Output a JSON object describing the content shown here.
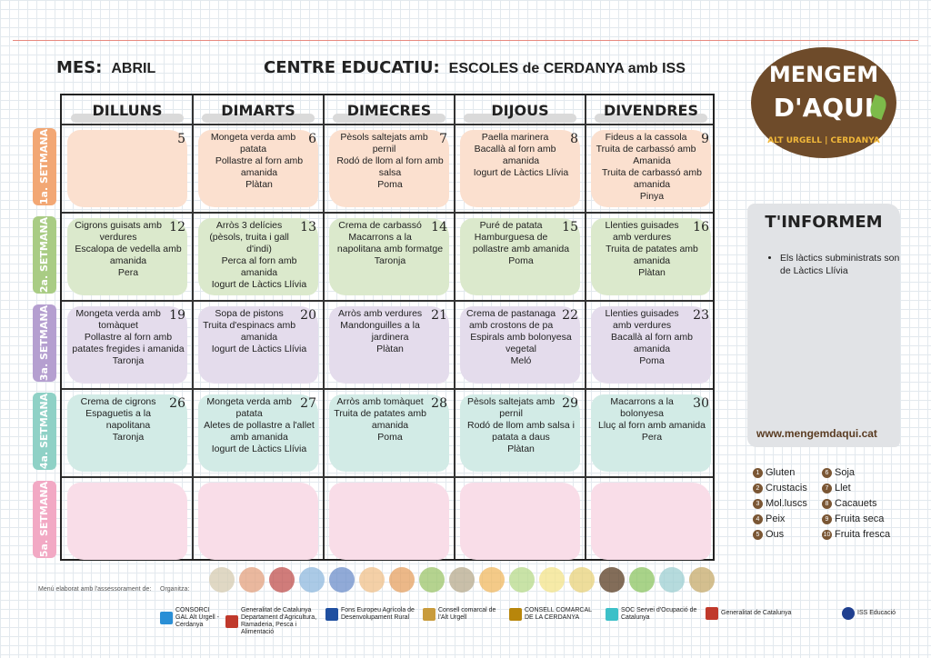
{
  "header": {
    "mes_label": "MES:",
    "mes": "ABRIL",
    "centre_label": "CENTRE EDUCATIU:",
    "centre": "ESCOLES de CERDANYA amb ISS"
  },
  "days": [
    "DILLUNS",
    "DIMARTS",
    "DIMECRES",
    "DIJOUS",
    "DIVENDRES"
  ],
  "weeks": [
    {
      "label": "1a. SETMANA",
      "color": "#f2a774",
      "bg": "#fbe0cf",
      "cells": [
        {
          "day": "5",
          "dishes": []
        },
        {
          "day": "6",
          "dishes": [
            "Mongeta verda amb patata",
            "Pollastre al forn amb amanida",
            "Plàtan"
          ]
        },
        {
          "day": "7",
          "dishes": [
            "Pèsols saltejats amb pernil",
            "Rodó de llom al forn amb salsa",
            "Poma"
          ]
        },
        {
          "day": "8",
          "dishes": [
            "Paella marinera",
            "Bacallà al forn amb amanida",
            "Iogurt de Làctics Llívia"
          ]
        },
        {
          "day": "9",
          "dishes": [
            "Fideus a la cassola",
            "Truita de carbassó amb Amanida",
            "Truita de carbassó amb amanida",
            "Pinya"
          ]
        }
      ]
    },
    {
      "label": "2a. SETMANA",
      "color": "#a9cc84",
      "bg": "#dbe9cc",
      "cells": [
        {
          "day": "12",
          "dishes": [
            "Cigrons guisats amb verdures",
            "Escalopa de vedella amb amanida",
            "Pera"
          ]
        },
        {
          "day": "13",
          "dishes": [
            "Arròs 3 delícies (pèsols, truita i gall d'indi)",
            "Perca al forn amb amanida",
            "Iogurt de Làctics Llívia"
          ]
        },
        {
          "day": "14",
          "dishes": [
            "Crema de carbassó",
            "Macarrons a la napolitana amb formatge",
            "Taronja"
          ]
        },
        {
          "day": "15",
          "dishes": [
            "Puré de patata",
            "Hamburguesa de pollastre amb amanida",
            "Poma"
          ]
        },
        {
          "day": "16",
          "dishes": [
            "Llenties guisades amb verdures",
            "Truita de patates amb amanida",
            "Plàtan"
          ]
        }
      ]
    },
    {
      "label": "3a. SETMANA",
      "color": "#b59fd0",
      "bg": "#e4dcec",
      "cells": [
        {
          "day": "19",
          "dishes": [
            "Mongeta verda amb tomàquet",
            "Pollastre al forn amb patates fregides i amanida",
            "Taronja"
          ]
        },
        {
          "day": "20",
          "dishes": [
            "Sopa de pistons",
            "Truita d'espinacs amb amanida",
            "Iogurt de Làctics Llívia"
          ]
        },
        {
          "day": "21",
          "dishes": [
            "Arròs amb verdures",
            "Mandonguilles a la jardinera",
            "Plàtan"
          ]
        },
        {
          "day": "22",
          "dishes": [
            "Crema de pastanaga amb crostons de pa",
            "Espirals amb bolonyesa vegetal",
            "Meló"
          ]
        },
        {
          "day": "23",
          "dishes": [
            "Llenties guisades amb verdures",
            "Bacallà al forn amb amanida",
            "Poma"
          ]
        }
      ]
    },
    {
      "label": "4a. SETMANA",
      "color": "#8fd1c6",
      "bg": "#d2ebe6",
      "cells": [
        {
          "day": "26",
          "dishes": [
            "Crema de cigrons",
            "Espaguetis a la napolitana",
            "Taronja"
          ]
        },
        {
          "day": "27",
          "dishes": [
            "Mongeta verda amb patata",
            "Aletes de pollastre a l'allet amb amanida",
            "Iogurt de Làctics Llívia"
          ]
        },
        {
          "day": "28",
          "dishes": [
            "Arròs amb tomàquet",
            "Truita de patates amb amanida",
            "Poma"
          ]
        },
        {
          "day": "29",
          "dishes": [
            "Pèsols saltejats amb pernil",
            "Rodó de llom amb salsa i patata a daus",
            "Plàtan"
          ]
        },
        {
          "day": "30",
          "dishes": [
            "Macarrons a la bolonyesa",
            "Lluç al forn amb amanida",
            "Pera"
          ]
        }
      ]
    },
    {
      "label": "5a. SETMANA",
      "color": "#f2a9c4",
      "bg": "#f9dde8",
      "cells": [
        {
          "day": "",
          "dishes": []
        },
        {
          "day": "",
          "dishes": []
        },
        {
          "day": "",
          "dishes": []
        },
        {
          "day": "",
          "dishes": []
        },
        {
          "day": "",
          "dishes": []
        }
      ]
    }
  ],
  "logo": {
    "line1": "MENGEM",
    "line2": "D'AQUI",
    "line3": "ALT URGELL | CERDANYA"
  },
  "info": {
    "title": "T'INFORMEM",
    "items": [
      "Els làctics subministrats son de Làctics Llívia"
    ]
  },
  "website": "www.mengemdaqui.cat",
  "allergens": [
    {
      "n": "1",
      "label": "Gluten"
    },
    {
      "n": "6",
      "label": "Soja"
    },
    {
      "n": "2",
      "label": "Crustacis"
    },
    {
      "n": "7",
      "label": "Llet"
    },
    {
      "n": "3",
      "label": "Mol.luscs"
    },
    {
      "n": "8",
      "label": "Cacauets"
    },
    {
      "n": "4",
      "label": "Peix"
    },
    {
      "n": "9",
      "label": "Fruita seca"
    },
    {
      "n": "5",
      "label": "Ous"
    },
    {
      "n": "10",
      "label": "Fruita fresca"
    }
  ],
  "icon_colors": [
    "#d6cbb0",
    "#e3a07e",
    "#c0504d",
    "#8fb8de",
    "#6c8ec9",
    "#f0c08a",
    "#e6a060",
    "#9cc46a",
    "#b7a98c",
    "#f0b860",
    "#b7d98a",
    "#f3e38a",
    "#e8d27a",
    "#5a3c22",
    "#8cc461",
    "#9ecfd1",
    "#c6a96a"
  ],
  "footer": {
    "assessorament": "Menú elaborat amb l'assessorament de:",
    "organitza": "Organitza:",
    "logos": [
      "CONSORCI GAL Alt Urgell - Cerdanya",
      "Generalitat de Catalunya Departament d'Agricultura, Ramaderia, Pesca i Alimentació",
      "Fons Europeu Agrícola de Desenvolupament Rural",
      "Consell comarcal de l'Alt Urgell",
      "CONSELL COMARCAL DE LA CERDANYA",
      "SOC Servei d'Ocupació de Catalunya",
      "Generalitat de Catalunya",
      "ISS Educació"
    ]
  }
}
